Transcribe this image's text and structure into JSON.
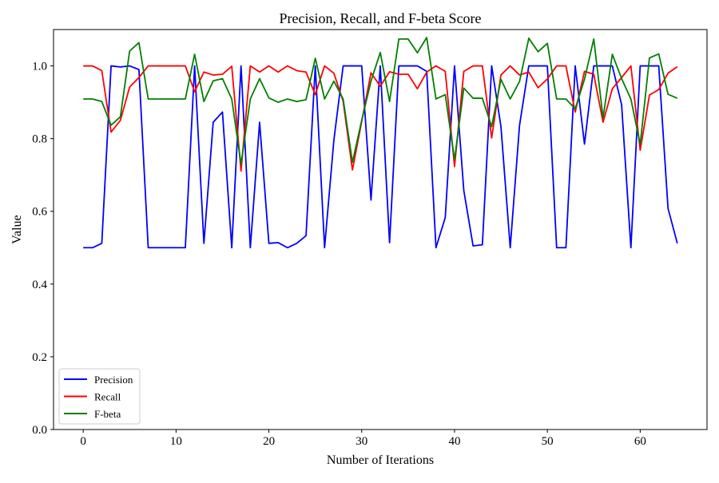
{
  "chart_data": {
    "type": "line",
    "title": "Precision, Recall, and F-beta Score",
    "xlabel": "Number of Iterations",
    "ylabel": "Value",
    "xlim": [
      -3.2,
      67.2
    ],
    "ylim": [
      0.0,
      1.1
    ],
    "xticks": [
      0,
      10,
      20,
      30,
      40,
      50,
      60
    ],
    "yticks": [
      0.0,
      0.2,
      0.4,
      0.6,
      0.8,
      1.0
    ],
    "ytick_labels": [
      "0.0",
      "0.2",
      "0.4",
      "0.6",
      "0.8",
      "1.0"
    ],
    "grid": false,
    "legend": "lower-left",
    "x": [
      0,
      1,
      2,
      3,
      4,
      5,
      6,
      7,
      8,
      9,
      10,
      11,
      12,
      13,
      14,
      15,
      16,
      17,
      18,
      19,
      20,
      21,
      22,
      23,
      24,
      25,
      26,
      27,
      28,
      29,
      30,
      31,
      32,
      33,
      34,
      35,
      36,
      37,
      38,
      39,
      40,
      41,
      42,
      43,
      44,
      45,
      46,
      47,
      48,
      49,
      50,
      51,
      52,
      53,
      54,
      55,
      56,
      57,
      58,
      59,
      60,
      61,
      62,
      63,
      64
    ],
    "series": [
      {
        "name": "Precision",
        "color": "#0000ff",
        "values": [
          0.5,
          0.5,
          0.512,
          1.0,
          0.997,
          1.0,
          0.99,
          0.5,
          0.5,
          0.5,
          0.5,
          0.5,
          1.0,
          0.512,
          0.845,
          0.873,
          0.5,
          1.0,
          0.5,
          0.845,
          0.512,
          0.514,
          0.5,
          0.512,
          0.533,
          1.0,
          0.5,
          0.795,
          1.0,
          1.0,
          1.0,
          0.631,
          1.0,
          0.514,
          1.0,
          1.0,
          1.0,
          0.985,
          0.5,
          0.583,
          1.0,
          0.657,
          0.505,
          0.508,
          1.0,
          0.833,
          0.5,
          0.836,
          1.0,
          1.0,
          1.0,
          0.5,
          0.5,
          1.0,
          0.785,
          1.0,
          1.0,
          1.0,
          0.893,
          0.5,
          1.0,
          1.0,
          1.0,
          0.608,
          0.512
        ]
      },
      {
        "name": "Recall",
        "color": "#ff0000",
        "values": [
          1.0,
          1.0,
          0.987,
          0.818,
          0.85,
          0.942,
          0.968,
          1.0,
          1.0,
          1.0,
          1.0,
          1.0,
          0.929,
          0.983,
          0.975,
          0.977,
          0.999,
          0.711,
          1.0,
          0.983,
          1.0,
          0.983,
          1.0,
          0.987,
          0.983,
          0.921,
          1.0,
          0.98,
          0.903,
          0.714,
          0.847,
          0.981,
          0.944,
          0.984,
          0.977,
          0.977,
          0.937,
          0.983,
          1.0,
          0.985,
          0.723,
          0.985,
          1.0,
          1.0,
          0.802,
          0.975,
          1.0,
          0.975,
          0.983,
          0.94,
          0.964,
          1.0,
          1.0,
          0.873,
          0.985,
          0.977,
          0.845,
          0.937,
          0.968,
          1.0,
          0.768,
          0.92,
          0.935,
          0.98,
          0.998
        ]
      },
      {
        "name": "F-beta",
        "color": "#008000",
        "values": [
          0.909,
          0.909,
          0.902,
          0.837,
          0.86,
          1.041,
          1.064,
          0.909,
          0.909,
          0.909,
          0.909,
          0.909,
          1.032,
          0.902,
          0.959,
          0.965,
          0.909,
          0.73,
          0.909,
          0.965,
          0.912,
          0.9,
          0.909,
          0.902,
          0.907,
          1.021,
          0.909,
          0.958,
          0.909,
          0.735,
          0.85,
          0.958,
          1.037,
          0.902,
          1.074,
          1.074,
          1.036,
          1.078,
          0.909,
          0.921,
          0.742,
          0.939,
          0.911,
          0.911,
          0.833,
          0.963,
          0.909,
          0.957,
          1.076,
          1.039,
          1.062,
          0.909,
          0.909,
          0.882,
          0.963,
          1.074,
          0.857,
          1.032,
          0.965,
          0.909,
          0.784,
          1.022,
          1.033,
          0.922,
          0.911
        ]
      }
    ]
  }
}
